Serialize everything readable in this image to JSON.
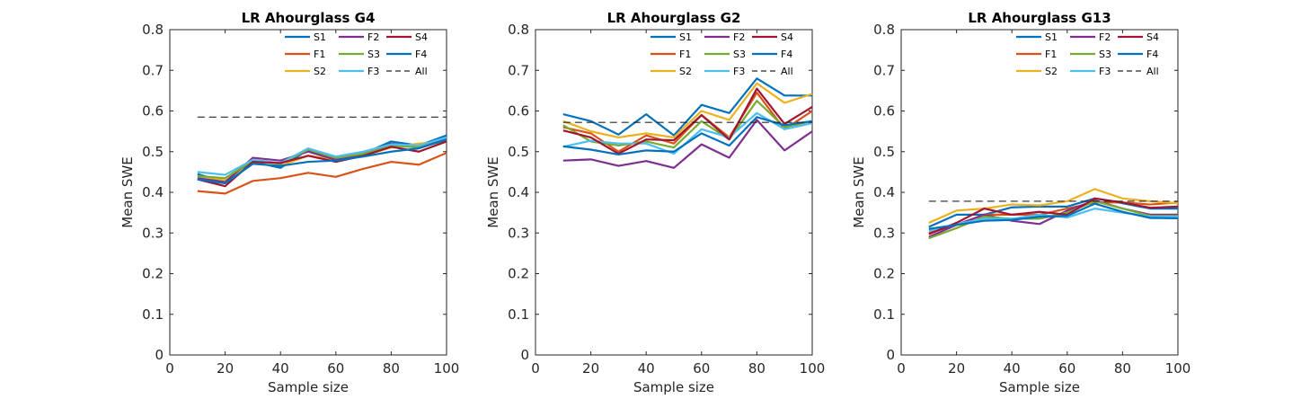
{
  "chart_data": [
    {
      "type": "line",
      "title": "LR Ahourglass G4",
      "xlabel": "Sample size",
      "ylabel": "Mean SWE",
      "xlim": [
        0,
        100
      ],
      "ylim": [
        0,
        0.8
      ],
      "xticks": [
        "0",
        "20",
        "40",
        "60",
        "80",
        "100"
      ],
      "yticks": [
        "0",
        "0.1",
        "0.2",
        "0.3",
        "0.4",
        "0.5",
        "0.6",
        "0.7",
        "0.8"
      ],
      "x": [
        10,
        20,
        30,
        40,
        50,
        60,
        70,
        80,
        90,
        100
      ],
      "legend_placement": "top-right",
      "grid": false,
      "series": [
        {
          "name": "S1",
          "color": "#0072BD",
          "dash": false,
          "values": [
            0.445,
            0.425,
            0.475,
            0.46,
            0.505,
            0.475,
            0.495,
            0.525,
            0.515,
            0.54
          ]
        },
        {
          "name": "F1",
          "color": "#D95319",
          "dash": false,
          "values": [
            0.403,
            0.397,
            0.428,
            0.435,
            0.448,
            0.438,
            0.458,
            0.475,
            0.468,
            0.497
          ]
        },
        {
          "name": "S2",
          "color": "#EDB120",
          "dash": false,
          "values": [
            0.44,
            0.43,
            0.47,
            0.465,
            0.49,
            0.48,
            0.49,
            0.51,
            0.52,
            0.525
          ]
        },
        {
          "name": "F2",
          "color": "#7E2F8E",
          "dash": false,
          "values": [
            0.435,
            0.425,
            0.485,
            0.478,
            0.5,
            0.48,
            0.49,
            0.52,
            0.51,
            0.53
          ]
        },
        {
          "name": "S3",
          "color": "#77AC30",
          "dash": false,
          "values": [
            0.44,
            0.435,
            0.478,
            0.47,
            0.505,
            0.485,
            0.495,
            0.515,
            0.51,
            0.528
          ]
        },
        {
          "name": "F3",
          "color": "#4DBEEE",
          "dash": false,
          "values": [
            0.45,
            0.443,
            0.48,
            0.472,
            0.508,
            0.488,
            0.5,
            0.518,
            0.515,
            0.535
          ]
        },
        {
          "name": "S4",
          "color": "#A2142F",
          "dash": false,
          "values": [
            0.432,
            0.415,
            0.475,
            0.472,
            0.49,
            0.475,
            0.49,
            0.512,
            0.5,
            0.525
          ]
        },
        {
          "name": "F4",
          "color": "#0072BD",
          "dash": false,
          "values": [
            0.432,
            0.422,
            0.47,
            0.465,
            0.475,
            0.478,
            0.488,
            0.5,
            0.508,
            0.53
          ]
        },
        {
          "name": "All",
          "color": "#262626",
          "dash": true,
          "values": [
            0.585,
            0.585,
            0.585,
            0.585,
            0.585,
            0.585,
            0.585,
            0.585,
            0.585,
            0.585
          ]
        }
      ]
    },
    {
      "type": "line",
      "title": "LR Ahourglass G2",
      "xlabel": "Sample size",
      "ylabel": "Mean SWE",
      "xlim": [
        0,
        100
      ],
      "ylim": [
        0,
        0.8
      ],
      "xticks": [
        "0",
        "20",
        "40",
        "60",
        "80",
        "100"
      ],
      "yticks": [
        "0",
        "0.1",
        "0.2",
        "0.3",
        "0.4",
        "0.5",
        "0.6",
        "0.7",
        "0.8"
      ],
      "x": [
        10,
        20,
        30,
        40,
        50,
        60,
        70,
        80,
        90,
        100
      ],
      "legend_placement": "top-right",
      "grid": false,
      "series": [
        {
          "name": "S1",
          "color": "#0072BD",
          "dash": false,
          "values": [
            0.592,
            0.575,
            0.542,
            0.592,
            0.54,
            0.615,
            0.595,
            0.68,
            0.638,
            0.638
          ]
        },
        {
          "name": "F1",
          "color": "#D95319",
          "dash": false,
          "values": [
            0.56,
            0.545,
            0.5,
            0.54,
            0.52,
            0.59,
            0.535,
            0.645,
            0.555,
            0.6
          ]
        },
        {
          "name": "S2",
          "color": "#EDB120",
          "dash": false,
          "values": [
            0.575,
            0.55,
            0.535,
            0.545,
            0.535,
            0.6,
            0.578,
            0.668,
            0.62,
            0.642
          ]
        },
        {
          "name": "F2",
          "color": "#7E2F8E",
          "dash": false,
          "values": [
            0.478,
            0.481,
            0.465,
            0.477,
            0.46,
            0.518,
            0.485,
            0.578,
            0.503,
            0.55
          ]
        },
        {
          "name": "S3",
          "color": "#77AC30",
          "dash": false,
          "values": [
            0.565,
            0.525,
            0.515,
            0.525,
            0.51,
            0.575,
            0.53,
            0.625,
            0.56,
            0.575
          ]
        },
        {
          "name": "F3",
          "color": "#4DBEEE",
          "dash": false,
          "values": [
            0.512,
            0.527,
            0.52,
            0.52,
            0.495,
            0.555,
            0.535,
            0.595,
            0.555,
            0.57
          ]
        },
        {
          "name": "S4",
          "color": "#A2142F",
          "dash": false,
          "values": [
            0.552,
            0.535,
            0.495,
            0.53,
            0.528,
            0.59,
            0.53,
            0.655,
            0.568,
            0.61
          ]
        },
        {
          "name": "F4",
          "color": "#0072BD",
          "dash": false,
          "values": [
            0.513,
            0.505,
            0.493,
            0.503,
            0.5,
            0.545,
            0.515,
            0.585,
            0.565,
            0.575
          ]
        },
        {
          "name": "All",
          "color": "#262626",
          "dash": true,
          "values": [
            0.572,
            0.572,
            0.572,
            0.572,
            0.572,
            0.572,
            0.572,
            0.572,
            0.572,
            0.572
          ]
        }
      ]
    },
    {
      "type": "line",
      "title": "LR Ahourglass G13",
      "xlabel": "Sample size",
      "ylabel": "Mean SWE",
      "xlim": [
        0,
        100
      ],
      "ylim": [
        0,
        0.8
      ],
      "xticks": [
        "0",
        "20",
        "40",
        "60",
        "80",
        "100"
      ],
      "yticks": [
        "0",
        "0.1",
        "0.2",
        "0.3",
        "0.4",
        "0.5",
        "0.6",
        "0.7",
        "0.8"
      ],
      "x": [
        10,
        20,
        30,
        40,
        50,
        60,
        70,
        80,
        90,
        100
      ],
      "legend_placement": "top-right",
      "grid": false,
      "series": [
        {
          "name": "S1",
          "color": "#0072BD",
          "dash": false,
          "values": [
            0.315,
            0.345,
            0.345,
            0.363,
            0.365,
            0.365,
            0.385,
            0.373,
            0.36,
            0.36
          ]
        },
        {
          "name": "F1",
          "color": "#D95319",
          "dash": false,
          "values": [
            0.3,
            0.32,
            0.345,
            0.345,
            0.345,
            0.36,
            0.375,
            0.375,
            0.37,
            0.375
          ]
        },
        {
          "name": "S2",
          "color": "#EDB120",
          "dash": false,
          "values": [
            0.325,
            0.355,
            0.36,
            0.37,
            0.368,
            0.378,
            0.408,
            0.385,
            0.378,
            0.373
          ]
        },
        {
          "name": "F2",
          "color": "#7E2F8E",
          "dash": false,
          "values": [
            0.29,
            0.32,
            0.345,
            0.33,
            0.322,
            0.355,
            0.38,
            0.36,
            0.345,
            0.345
          ]
        },
        {
          "name": "S3",
          "color": "#77AC30",
          "dash": false,
          "values": [
            0.287,
            0.312,
            0.34,
            0.335,
            0.335,
            0.35,
            0.378,
            0.36,
            0.342,
            0.342
          ]
        },
        {
          "name": "F3",
          "color": "#4DBEEE",
          "dash": false,
          "values": [
            0.305,
            0.322,
            0.335,
            0.335,
            0.345,
            0.338,
            0.36,
            0.35,
            0.34,
            0.34
          ]
        },
        {
          "name": "S4",
          "color": "#A2142F",
          "dash": false,
          "values": [
            0.297,
            0.325,
            0.36,
            0.345,
            0.352,
            0.345,
            0.385,
            0.375,
            0.362,
            0.365
          ]
        },
        {
          "name": "F4",
          "color": "#0072BD",
          "dash": false,
          "values": [
            0.31,
            0.32,
            0.33,
            0.332,
            0.34,
            0.342,
            0.372,
            0.352,
            0.337,
            0.336
          ]
        },
        {
          "name": "All",
          "color": "#262626",
          "dash": true,
          "values": [
            0.378,
            0.378,
            0.378,
            0.378,
            0.378,
            0.378,
            0.378,
            0.378,
            0.378,
            0.378
          ]
        }
      ]
    }
  ]
}
